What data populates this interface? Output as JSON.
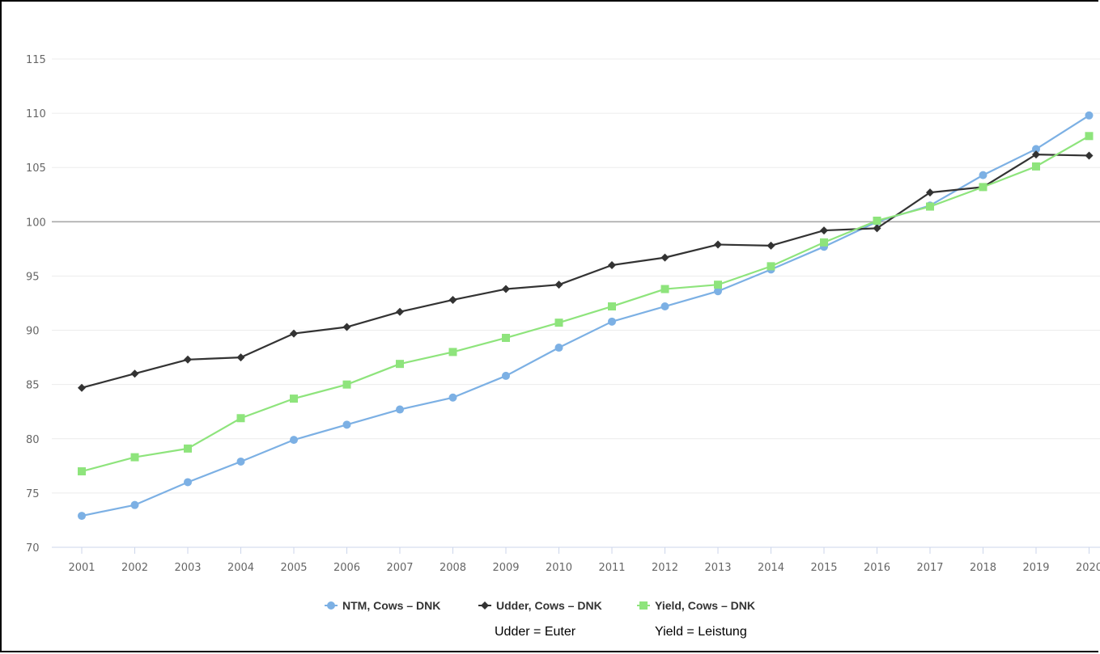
{
  "chart_data": {
    "type": "line",
    "title": "",
    "xlabel": "",
    "ylabel": "",
    "x": [
      "2001",
      "2002",
      "2003",
      "2004",
      "2005",
      "2006",
      "2007",
      "2008",
      "2009",
      "2010",
      "2011",
      "2012",
      "2013",
      "2014",
      "2015",
      "2016",
      "2017",
      "2018",
      "2019",
      "2020"
    ],
    "ylim": [
      70,
      115
    ],
    "yticks": [
      70,
      75,
      80,
      85,
      90,
      95,
      100,
      105,
      110,
      115
    ],
    "reference_line": 100,
    "grid": true,
    "legend_position": "bottom",
    "series": [
      {
        "name": "NTM, Cows – DNK",
        "color": "#7cb0e4",
        "marker": "circle",
        "values": [
          72.9,
          73.9,
          76.0,
          77.9,
          79.9,
          81.3,
          82.7,
          83.8,
          85.8,
          88.4,
          90.8,
          92.2,
          93.6,
          95.6,
          97.7,
          100.0,
          101.5,
          104.3,
          106.7,
          109.8
        ]
      },
      {
        "name": "Udder, Cows – DNK",
        "color": "#333333",
        "marker": "diamond",
        "values": [
          84.7,
          86.0,
          87.3,
          87.5,
          89.7,
          90.3,
          91.7,
          92.8,
          93.8,
          94.2,
          96.0,
          96.7,
          97.9,
          97.8,
          99.2,
          99.4,
          102.7,
          103.2,
          106.2,
          106.1
        ]
      },
      {
        "name": "Yield, Cows – DNK",
        "color": "#8ee47c",
        "marker": "square",
        "values": [
          77.0,
          78.3,
          79.1,
          81.9,
          83.7,
          85.0,
          86.9,
          88.0,
          89.3,
          90.7,
          92.2,
          93.8,
          94.2,
          95.9,
          98.1,
          100.1,
          101.4,
          103.2,
          105.1,
          107.9
        ]
      }
    ]
  },
  "notes": {
    "udder": "Udder = Euter",
    "yield": "Yield = Leistung"
  }
}
